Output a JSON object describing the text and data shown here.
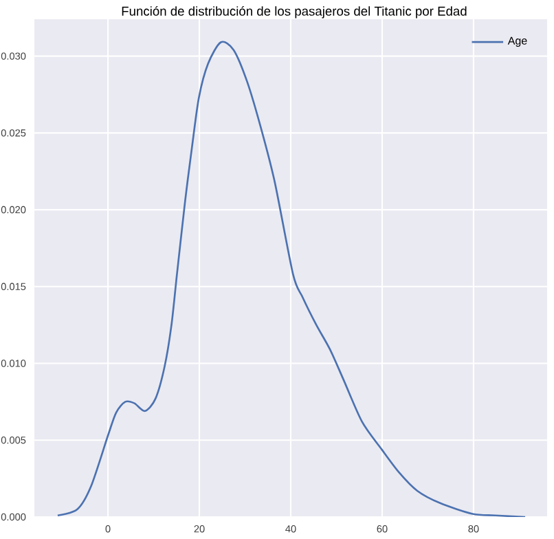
{
  "chart_data": {
    "type": "line",
    "title": "Función de distribución de los pasajeros del Titanic por Edad",
    "x": [
      -11,
      -6.7,
      -3.7,
      0,
      1.8,
      3.8,
      5.8,
      8.1,
      10.4,
      12.4,
      13.9,
      15.1,
      16.9,
      18.4,
      19.9,
      21.9,
      24.7,
      27.5,
      30.5,
      33.5,
      36.5,
      40.5,
      42.6,
      45.6,
      48.6,
      51.6,
      55.6,
      59.9,
      63.7,
      67.7,
      72.7,
      79.8,
      84.8,
      91.3
    ],
    "series": [
      {
        "name": "Age",
        "color": "#4c72b0",
        "values": [
          0.0001,
          0.0005,
          0.002,
          0.0053,
          0.0068,
          0.0075,
          0.0074,
          0.0069,
          0.0077,
          0.0098,
          0.0125,
          0.0158,
          0.0206,
          0.0241,
          0.0273,
          0.0295,
          0.0309,
          0.0304,
          0.0283,
          0.0253,
          0.0218,
          0.0158,
          0.0143,
          0.0125,
          0.0109,
          0.0089,
          0.0062,
          0.0044,
          0.0029,
          0.0017,
          0.0009,
          0.0002,
          0.0001,
          0
        ]
      }
    ],
    "xlim": [
      -16.1,
      96.1
    ],
    "ylim": [
      0,
      0.0324
    ],
    "xticks": [
      0,
      20,
      40,
      60,
      80
    ],
    "yticks": [
      {
        "value": 0,
        "label": "0.000"
      },
      {
        "value": 0.005,
        "label": "0.005"
      },
      {
        "value": 0.01,
        "label": "0.010"
      },
      {
        "value": 0.015,
        "label": "0.015"
      },
      {
        "value": 0.02,
        "label": "0.020"
      },
      {
        "value": 0.025,
        "label": "0.025"
      },
      {
        "value": 0.03,
        "label": "0.030"
      }
    ],
    "grid": true,
    "legend": "top right",
    "marker": "none",
    "line_style": "solid"
  }
}
